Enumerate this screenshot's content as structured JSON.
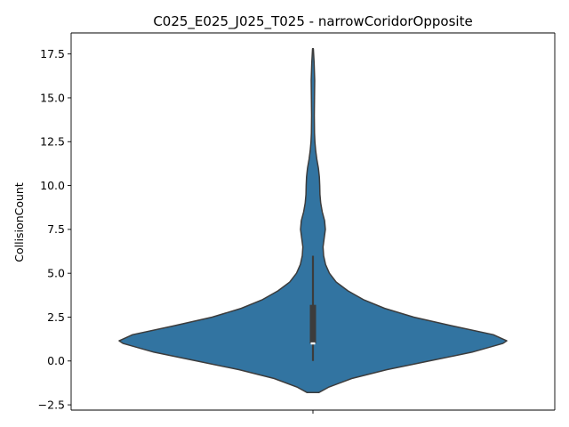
{
  "chart_data": {
    "type": "violin",
    "title": "C025_E025_J025_T025 - narrowCoridorOpposite",
    "xlabel": "",
    "ylabel": "CollisionCount",
    "ylim": [
      -2.8,
      18.7
    ],
    "yticks": [
      -2.5,
      0.0,
      2.5,
      5.0,
      7.5,
      10.0,
      12.5,
      15.0,
      17.5
    ],
    "ytick_labels": [
      "−2.5",
      "0.0",
      "2.5",
      "5.0",
      "7.5",
      "10.0",
      "12.5",
      "15.0",
      "17.5"
    ],
    "grid": false,
    "color": "#3274a1",
    "outline_color": "#3c3c3c",
    "violin_extent": [
      -1.8,
      17.8
    ],
    "density_profile": [
      {
        "y": -1.8,
        "w": 0.03
      },
      {
        "y": -1.5,
        "w": 0.08
      },
      {
        "y": -1.0,
        "w": 0.2
      },
      {
        "y": -0.5,
        "w": 0.38
      },
      {
        "y": 0.0,
        "w": 0.6
      },
      {
        "y": 0.5,
        "w": 0.82
      },
      {
        "y": 1.0,
        "w": 0.98
      },
      {
        "y": 1.15,
        "w": 1.0
      },
      {
        "y": 1.5,
        "w": 0.93
      },
      {
        "y": 2.0,
        "w": 0.72
      },
      {
        "y": 2.5,
        "w": 0.52
      },
      {
        "y": 3.0,
        "w": 0.37
      },
      {
        "y": 3.5,
        "w": 0.26
      },
      {
        "y": 4.0,
        "w": 0.18
      },
      {
        "y": 4.5,
        "w": 0.12
      },
      {
        "y": 5.0,
        "w": 0.085
      },
      {
        "y": 5.5,
        "w": 0.065
      },
      {
        "y": 6.0,
        "w": 0.055
      },
      {
        "y": 6.5,
        "w": 0.052
      },
      {
        "y": 7.0,
        "w": 0.058
      },
      {
        "y": 7.5,
        "w": 0.064
      },
      {
        "y": 8.0,
        "w": 0.06
      },
      {
        "y": 8.5,
        "w": 0.048
      },
      {
        "y": 9.0,
        "w": 0.04
      },
      {
        "y": 9.5,
        "w": 0.036
      },
      {
        "y": 10.0,
        "w": 0.035
      },
      {
        "y": 10.5,
        "w": 0.033
      },
      {
        "y": 11.0,
        "w": 0.028
      },
      {
        "y": 11.5,
        "w": 0.02
      },
      {
        "y": 12.0,
        "w": 0.014
      },
      {
        "y": 12.5,
        "w": 0.01
      },
      {
        "y": 13.0,
        "w": 0.008
      },
      {
        "y": 14.0,
        "w": 0.007
      },
      {
        "y": 15.0,
        "w": 0.008
      },
      {
        "y": 16.0,
        "w": 0.009
      },
      {
        "y": 17.0,
        "w": 0.006
      },
      {
        "y": 17.8,
        "w": 0.002
      }
    ],
    "box": {
      "q1": 1.0,
      "median": 1.0,
      "q3": 3.2,
      "whisker_low": 0.0,
      "whisker_high": 6.0
    }
  }
}
